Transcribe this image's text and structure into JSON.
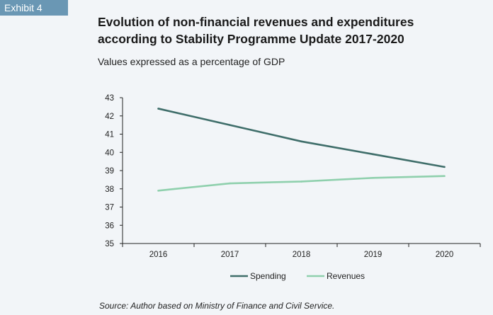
{
  "exhibit_label": "Exhibit 4",
  "title_line1": "Evolution of non-financial revenues and expenditures",
  "title_line2": "according to Stability Programme Update 2017-2020",
  "subtitle": "Values expressed as a percentage of GDP",
  "source": "Source: Author based on Ministry of Finance and Civil Service.",
  "colors": {
    "spending": "#3f6e6a",
    "revenues": "#8fd0ad",
    "header_band": "#6a97b4"
  },
  "chart_data": {
    "type": "line",
    "categories": [
      "2016",
      "2017",
      "2018",
      "2019",
      "2020"
    ],
    "series": [
      {
        "name": "Spending",
        "values": [
          42.4,
          41.5,
          40.6,
          39.9,
          39.2
        ]
      },
      {
        "name": "Revenues",
        "values": [
          37.9,
          38.3,
          38.4,
          38.6,
          38.7
        ]
      }
    ],
    "ylim": [
      35,
      43
    ],
    "yticks": [
      "35",
      "36",
      "37",
      "38",
      "39",
      "40",
      "41",
      "42",
      "43"
    ],
    "legend_position": "bottom",
    "grid": false
  }
}
